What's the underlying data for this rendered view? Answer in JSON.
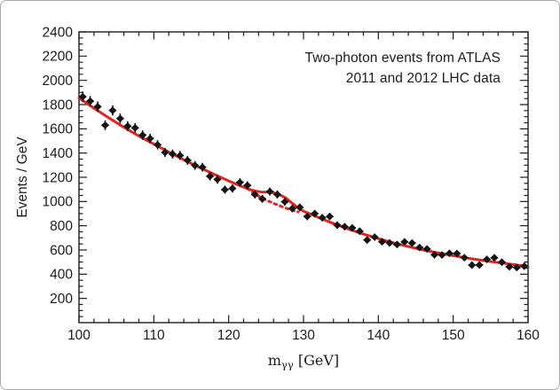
{
  "chart_data": {
    "type": "scatter",
    "title_lines": [
      "Two-photon events from ATLAS",
      "2011 and 2012 LHC data"
    ],
    "ylabel": "Events / GeV",
    "xlabel": {
      "base": "m",
      "subscript": "γγ",
      "unit": " [GeV]"
    },
    "xlim": [
      100,
      160
    ],
    "ylim": [
      0,
      2400
    ],
    "x_major_ticks": [
      100,
      110,
      120,
      130,
      140,
      150,
      160
    ],
    "x_minor_step": 2,
    "y_major_ticks": [
      200,
      400,
      600,
      800,
      1000,
      1200,
      1400,
      1600,
      1800,
      2000,
      2200,
      2400
    ],
    "y_minor_step": 50,
    "grid": false,
    "legend_position": "none",
    "bin_start": 100,
    "bin_width": 1,
    "values": [
      1865,
      1828,
      1783,
      1630,
      1752,
      1685,
      1622,
      1608,
      1548,
      1520,
      1468,
      1405,
      1392,
      1380,
      1340,
      1298,
      1283,
      1208,
      1182,
      1098,
      1108,
      1158,
      1133,
      1058,
      1022,
      1082,
      1058,
      998,
      942,
      952,
      876,
      900,
      866,
      876,
      805,
      792,
      782,
      755,
      682,
      706,
      668,
      658,
      645,
      667,
      657,
      620,
      608,
      560,
      559,
      572,
      571,
      536,
      475,
      476,
      522,
      536,
      499,
      461,
      455,
      466
    ],
    "yerr_model": "sqrt(N)",
    "xerr_half_width": 0.5,
    "fit_curve_solid": [
      [
        100,
        1855
      ],
      [
        102,
        1770
      ],
      [
        104,
        1690
      ],
      [
        106,
        1613
      ],
      [
        108,
        1540
      ],
      [
        110,
        1475
      ],
      [
        112,
        1408
      ],
      [
        114,
        1344
      ],
      [
        116,
        1284
      ],
      [
        118,
        1226
      ],
      [
        120,
        1170
      ],
      [
        121,
        1144
      ],
      [
        122,
        1119
      ],
      [
        122.8,
        1100
      ],
      [
        123.6,
        1086
      ],
      [
        124.4,
        1078
      ],
      [
        125.2,
        1078
      ],
      [
        126,
        1072
      ],
      [
        126.8,
        1056
      ],
      [
        127.6,
        1030
      ],
      [
        128.4,
        990
      ],
      [
        129.2,
        950
      ],
      [
        130,
        920
      ],
      [
        131,
        894
      ],
      [
        132,
        868
      ],
      [
        134,
        818
      ],
      [
        136,
        773
      ],
      [
        138,
        731
      ],
      [
        140,
        694
      ],
      [
        142,
        659
      ],
      [
        144,
        628
      ],
      [
        146,
        600
      ],
      [
        148,
        575
      ],
      [
        150,
        553
      ],
      [
        152,
        532
      ],
      [
        154,
        513
      ],
      [
        156,
        496
      ],
      [
        158,
        480
      ],
      [
        160,
        464
      ]
    ],
    "background_curve_dashed": [
      [
        122.5,
        1107
      ],
      [
        123.5,
        1062
      ],
      [
        124.5,
        1026
      ],
      [
        125.5,
        998
      ],
      [
        126.5,
        972
      ],
      [
        127.5,
        948
      ],
      [
        128.5,
        928
      ],
      [
        129.3,
        914
      ]
    ],
    "colors": {
      "fit": "#e42320",
      "marker": "#141414",
      "axis": "#1c1c1c",
      "frame_border": "#aaaaaa"
    }
  }
}
